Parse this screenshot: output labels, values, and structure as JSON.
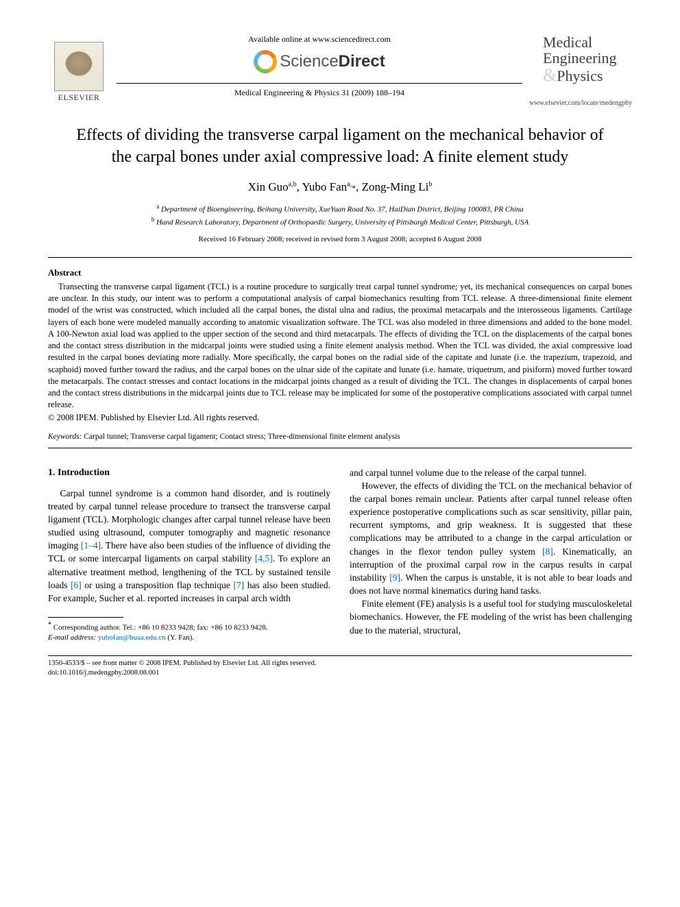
{
  "header": {
    "publisher_name": "ELSEVIER",
    "available_online": "Available online at www.sciencedirect.com",
    "sd_brand_light": "Science",
    "sd_brand_bold": "Direct",
    "journal_ref": "Medical Engineering & Physics 31 (2009) 188–194",
    "journal_name_line1": "Medical",
    "journal_name_line2": "Engineering",
    "journal_name_line3": "Physics",
    "journal_url": "www.elsevier.com/locate/medengphy"
  },
  "article": {
    "title": "Effects of dividing the transverse carpal ligament on the mechanical behavior of the carpal bones under axial compressive load: A finite element study",
    "authors_html": "Xin Guo",
    "author1": "Xin Guo",
    "author1_aff": "a,b",
    "author2": "Yubo Fan",
    "author2_aff": "a,",
    "author2_corr": "*",
    "author3": "Zong-Ming Li",
    "author3_aff": "b",
    "affiliation_a": "Department of Bioengineering, Beihang University, XueYuan Road No. 37, HaiDian District, Beijing 100083, PR China",
    "affiliation_b": "Hand Research Laboratory, Department of Orthopaedic Surgery, University of Pittsburgh Medical Center, Pittsburgh, USA",
    "dates": "Received 16 February 2008; received in revised form 3 August 2008; accepted 6 August 2008"
  },
  "abstract": {
    "heading": "Abstract",
    "body": "Transecting the transverse carpal ligament (TCL) is a routine procedure to surgically treat carpal tunnel syndrome; yet, its mechanical consequences on carpal bones are unclear. In this study, our intent was to perform a computational analysis of carpal biomechanics resulting from TCL release. A three-dimensional finite element model of the wrist was constructed, which included all the carpal bones, the distal ulna and radius, the proximal metacarpals and the interosseous ligaments. Cartilage layers of each bone were modeled manually according to anatomic visualization software. The TCL was also modeled in three dimensions and added to the bone model. A 100-Newton axial load was applied to the upper section of the second and third metacarpals. The effects of dividing the TCL on the displacements of the carpal bones and the contact stress distribution in the midcarpal joints were studied using a finite element analysis method. When the TCL was divided, the axial compressive load resulted in the carpal bones deviating more radially. More specifically, the carpal bones on the radial side of the capitate and lunate (i.e. the trapezium, trapezoid, and scaphoid) moved further toward the radius, and the carpal bones on the ulnar side of the capitate and lunate (i.e. hamate, triquetrum, and pisiform) moved further toward the metacarpals. The contact stresses and contact locations in the midcarpal joints changed as a result of dividing the TCL. The changes in displacements of carpal bones and the contact stress distributions in the midcarpal joints due to TCL release may be implicated for some of the postoperative complications associated with carpal tunnel release.",
    "copyright": "© 2008 IPEM. Published by Elsevier Ltd. All rights reserved."
  },
  "keywords": {
    "label": "Keywords:",
    "list": "Carpal tunnel; Transverse carpal ligament; Contact stress; Three-dimensional finite element analysis"
  },
  "body": {
    "section_num": "1.",
    "section_title": "Introduction",
    "left_p1_a": "Carpal tunnel syndrome is a common hand disorder, and is routinely treated by carpal tunnel release procedure to transect the transverse carpal ligament (TCL). Morphologic changes after carpal tunnel release have been studied using ultrasound, computer tomography and magnetic resonance imaging ",
    "cite_1_4": "[1–4]",
    "left_p1_b": ". There have also been studies of the influence of dividing the TCL or some intercarpal ligaments on carpal stability ",
    "cite_4_5": "[4,5]",
    "left_p1_c": ". To explore an alternative treatment method, lengthening of the TCL by sustained tensile loads ",
    "cite_6": "[6]",
    "left_p1_d": " or using a transposition flap technique ",
    "cite_7": "[7]",
    "left_p1_e": " has also been studied. For example, Sucher et al. reported increases in carpal arch width",
    "right_p1": "and carpal tunnel volume due to the release of the carpal tunnel.",
    "right_p2_a": "However, the effects of dividing the TCL on the mechanical behavior of the carpal bones remain unclear. Patients after carpal tunnel release often experience postoperative complications such as scar sensitivity, pillar pain, recurrent symptoms, and grip weakness. It is suggested that these complications may be attributed to a change in the carpal articulation or changes in the flexor tendon pulley system ",
    "cite_8": "[8]",
    "right_p2_b": ". Kinematically, an interruption of the proximal carpal row in the carpus results in carpal instability ",
    "cite_9": "[9]",
    "right_p2_c": ". When the carpus is unstable, it is not able to bear loads and does not have normal kinematics during hand tasks.",
    "right_p3": "Finite element (FE) analysis is a useful tool for studying musculoskeletal biomechanics. However, the FE modeling of the wrist has been challenging due to the material, structural,"
  },
  "footnotes": {
    "corr_label": "*",
    "corr_text": "Corresponding author. Tel.: +86 10 8233 9428; fax: +86 10 8233 9428.",
    "email_label": "E-mail address:",
    "email": "yubofan@buaa.edu.cn",
    "email_who": "(Y. Fan)."
  },
  "footer": {
    "line1": "1350-4533/$ – see front matter © 2008 IPEM. Published by Elsevier Ltd. All rights reserved.",
    "line2": "doi:10.1016/j.medengphy.2008.08.001"
  },
  "colors": {
    "link": "#0066cc",
    "text": "#000000",
    "background": "#ffffff"
  }
}
